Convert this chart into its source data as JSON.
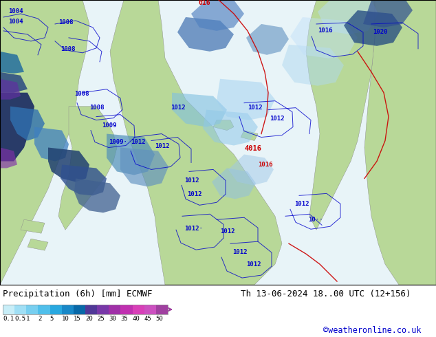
{
  "title_left": "Precipitation (6h) [mm] ECMWF",
  "title_right": "Th 13-06-2024 18..00 UTC (12+156)",
  "credit": "©weatheronline.co.uk",
  "colorbar_values": [
    "0.1",
    "0.5",
    "1",
    "2",
    "5",
    "10",
    "15",
    "20",
    "25",
    "30",
    "35",
    "40",
    "45",
    "50"
  ],
  "colorbar_colors": [
    "#c8eef8",
    "#a0dff5",
    "#78cff0",
    "#50bfeb",
    "#28a8e0",
    "#1888c8",
    "#0868a8",
    "#503898",
    "#7838a8",
    "#a030a8",
    "#c030b0",
    "#d840b8",
    "#cc50c0",
    "#a040a0"
  ],
  "bg_color": "#ffffff",
  "label_fontsize": 9,
  "credit_color": "#0000cc",
  "title_color": "#000000",
  "map_land_color": "#b8d898",
  "map_ocean_color": "#e8f4f8",
  "map_precip_light": "#b0dff0",
  "map_precip_med": "#5090c0",
  "map_precip_heavy": "#204080",
  "map_precip_purple": "#8030a0",
  "contour_color": "#0000cc",
  "front_cold_color": "#0000cc",
  "front_warm_color": "#cc0000",
  "pressure_label_color": "#0000cc"
}
